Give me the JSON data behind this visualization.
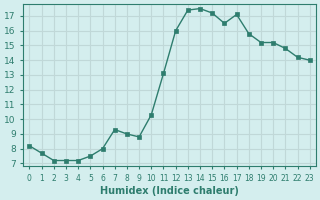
{
  "x": [
    0,
    1,
    2,
    3,
    4,
    5,
    6,
    7,
    8,
    9,
    10,
    11,
    12,
    13,
    14,
    15,
    16,
    17,
    18,
    19,
    20,
    21,
    22,
    23
  ],
  "y": [
    8.2,
    7.7,
    7.2,
    7.2,
    7.2,
    7.5,
    8.0,
    9.3,
    9.0,
    8.8,
    10.3,
    13.1,
    16.0,
    17.4,
    17.5,
    17.2,
    16.5,
    17.1,
    15.8,
    15.2,
    15.2,
    14.8,
    14.2,
    14.0
  ],
  "xlim": [
    -0.5,
    23.5
  ],
  "ylim": [
    6.8,
    17.8
  ],
  "xticks": [
    0,
    1,
    2,
    3,
    4,
    5,
    6,
    7,
    8,
    9,
    10,
    11,
    12,
    13,
    14,
    15,
    16,
    17,
    18,
    19,
    20,
    21,
    22,
    23
  ],
  "yticks": [
    7,
    8,
    9,
    10,
    11,
    12,
    13,
    14,
    15,
    16,
    17
  ],
  "xlabel": "Humidex (Indice chaleur)",
  "line_color": "#2e7d6e",
  "marker_color": "#2e7d6e",
  "bg_color": "#d4eeee",
  "grid_color": "#c0d8d8",
  "tick_label_color": "#2e7d6e",
  "axis_color": "#2e7d6e",
  "xlabel_color": "#2e7d6e"
}
